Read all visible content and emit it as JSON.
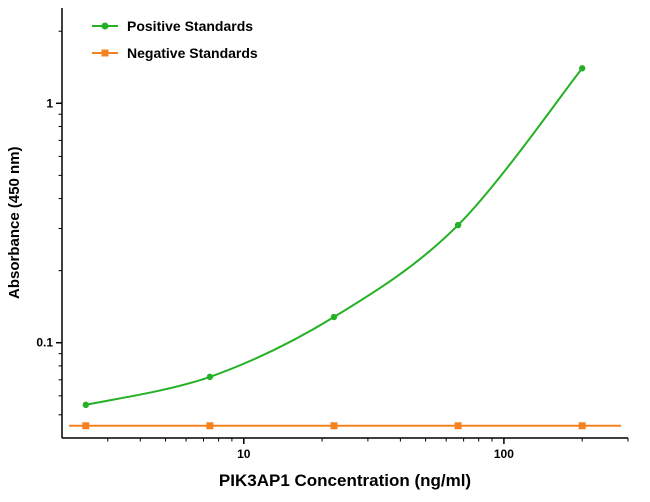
{
  "chart_data": {
    "type": "line",
    "title": "",
    "xlabel": "PIK3AP1 Concentration (ng/ml)",
    "ylabel": "Absorbance (450 nm)",
    "x_scale": "log",
    "y_scale": "log",
    "xlim": [
      2,
      300
    ],
    "ylim": [
      0.04,
      2.5
    ],
    "x_major_ticks": [
      10,
      100
    ],
    "y_major_ticks": [
      0.1,
      1
    ],
    "grid": false,
    "legend_position": "top-left",
    "axis_color": "#000000",
    "background": "#ffffff",
    "x": [
      2.469,
      7.407,
      22.22,
      66.67,
      200
    ],
    "series": [
      {
        "name": "Positive Standards",
        "color": "#25b025",
        "marker": "circle",
        "smooth": true,
        "full_width_line": false,
        "values": [
          0.055,
          0.072,
          0.128,
          0.31,
          1.4
        ]
      },
      {
        "name": "Negative Standards",
        "color": "#f58220",
        "marker": "square",
        "smooth": false,
        "full_width_line": true,
        "values": [
          0.045,
          0.045,
          0.045,
          0.045,
          0.045
        ]
      }
    ]
  }
}
